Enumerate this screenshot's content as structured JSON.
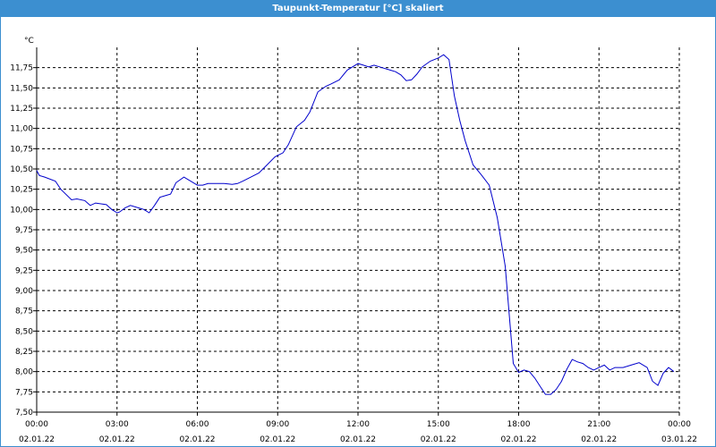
{
  "window": {
    "title": "Taupunkt-Temperatur [°C] skaliert"
  },
  "chart_data": {
    "type": "line",
    "title": "Taupunkt-Temperatur [°C] skaliert",
    "unit": "°C",
    "xlim": [
      0,
      24
    ],
    "ylim": [
      7.5,
      12.0
    ],
    "grid": true,
    "line_color": "#0000cc",
    "y_ticks": [
      {
        "value": 7.5,
        "label": "7,50"
      },
      {
        "value": 7.75,
        "label": "7,75"
      },
      {
        "value": 8.0,
        "label": "8,00"
      },
      {
        "value": 8.25,
        "label": "8,25"
      },
      {
        "value": 8.5,
        "label": "8,50"
      },
      {
        "value": 8.75,
        "label": "8,75"
      },
      {
        "value": 9.0,
        "label": "9,00"
      },
      {
        "value": 9.25,
        "label": "9,25"
      },
      {
        "value": 9.5,
        "label": "9,50"
      },
      {
        "value": 9.75,
        "label": "9,75"
      },
      {
        "value": 10.0,
        "label": "10,00"
      },
      {
        "value": 10.25,
        "label": "10,25"
      },
      {
        "value": 10.5,
        "label": "10,50"
      },
      {
        "value": 10.75,
        "label": "10,75"
      },
      {
        "value": 11.0,
        "label": "11,00"
      },
      {
        "value": 11.25,
        "label": "11,25"
      },
      {
        "value": 11.5,
        "label": "11,50"
      },
      {
        "value": 11.75,
        "label": "11,75"
      }
    ],
    "x_ticks": [
      {
        "value": 0,
        "time": "00:00",
        "date": "02.01.22"
      },
      {
        "value": 3,
        "time": "03:00",
        "date": "02.01.22"
      },
      {
        "value": 6,
        "time": "06:00",
        "date": "02.01.22"
      },
      {
        "value": 9,
        "time": "09:00",
        "date": "02.01.22"
      },
      {
        "value": 12,
        "time": "12:00",
        "date": "02.01.22"
      },
      {
        "value": 15,
        "time": "15:00",
        "date": "02.01.22"
      },
      {
        "value": 18,
        "time": "18:00",
        "date": "02.01.22"
      },
      {
        "value": 21,
        "time": "21:00",
        "date": "02.01.22"
      },
      {
        "value": 24,
        "time": "00:00",
        "date": "03.01.22"
      }
    ],
    "series": [
      {
        "x": [
          0,
          0.1,
          0.3,
          0.7,
          0.9,
          1.3,
          1.5,
          1.8,
          2.0,
          2.2,
          2.6,
          2.8,
          3.0,
          3.1,
          3.3,
          3.5,
          3.8,
          4.0,
          4.2,
          4.4,
          4.6,
          4.8,
          5.0,
          5.2,
          5.5,
          5.7,
          5.9,
          6.0,
          6.2,
          6.4,
          6.7,
          7.0,
          7.3,
          7.5,
          7.7,
          8.0,
          8.3,
          8.6,
          8.9,
          9.2,
          9.4,
          9.7,
          10.0,
          10.2,
          10.5,
          10.8,
          11.0,
          11.3,
          11.6,
          12.0,
          12.2,
          12.4,
          12.6,
          12.9,
          13.2,
          13.4,
          13.6,
          13.8,
          14.0,
          14.2,
          14.4,
          14.7,
          15.0,
          15.2,
          15.4,
          15.6,
          15.8,
          16.0,
          16.3,
          16.6,
          16.9,
          17.2,
          17.5,
          17.7,
          17.8,
          18.0,
          18.2,
          18.4,
          18.6,
          18.8,
          19.0,
          19.2,
          19.4,
          19.6,
          19.8,
          20.0,
          20.2,
          20.4,
          20.6,
          20.8,
          21.0,
          21.2,
          21.4,
          21.6,
          21.9,
          22.2,
          22.5,
          22.8,
          23.0,
          23.2,
          23.4,
          23.6,
          23.8
        ],
        "y": [
          10.48,
          10.42,
          10.4,
          10.35,
          10.25,
          10.12,
          10.13,
          10.11,
          10.05,
          10.08,
          10.06,
          10.0,
          9.96,
          9.97,
          10.02,
          10.05,
          10.02,
          10.0,
          9.96,
          10.05,
          10.15,
          10.17,
          10.19,
          10.33,
          10.4,
          10.36,
          10.32,
          10.3,
          10.3,
          10.32,
          10.32,
          10.32,
          10.31,
          10.32,
          10.35,
          10.4,
          10.45,
          10.55,
          10.65,
          10.7,
          10.8,
          11.02,
          11.1,
          11.2,
          11.45,
          11.52,
          11.55,
          11.6,
          11.72,
          11.8,
          11.78,
          11.76,
          11.78,
          11.75,
          11.72,
          11.7,
          11.66,
          11.59,
          11.6,
          11.67,
          11.76,
          11.83,
          11.87,
          11.91,
          11.85,
          11.4,
          11.1,
          10.85,
          10.55,
          10.43,
          10.3,
          9.9,
          9.3,
          8.5,
          8.1,
          7.99,
          8.02,
          8.0,
          7.92,
          7.82,
          7.72,
          7.72,
          7.78,
          7.88,
          8.03,
          8.15,
          8.12,
          8.1,
          8.05,
          8.02,
          8.05,
          8.08,
          8.02,
          8.05,
          8.05,
          8.08,
          8.11,
          8.05,
          7.88,
          7.83,
          7.98,
          8.05,
          8.0
        ]
      }
    ]
  }
}
